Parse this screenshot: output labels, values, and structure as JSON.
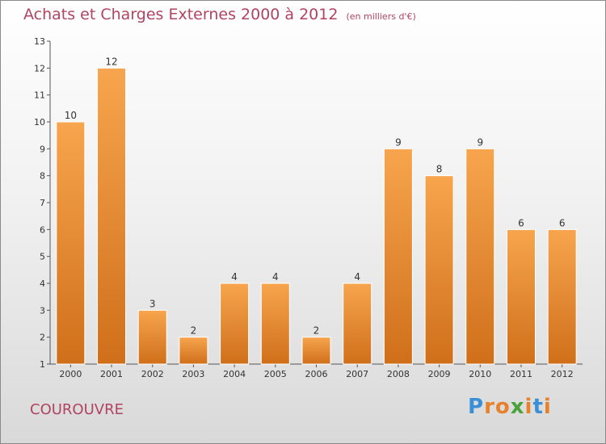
{
  "header": {
    "title": "Achats et Charges Externes 2000 à 2012",
    "unit": "(en milliers d'€)"
  },
  "commune": "COUROUVRE",
  "logo": {
    "text": "Proxiti",
    "letters": [
      {
        "ch": "P",
        "color": "#3a8fd6"
      },
      {
        "ch": "r",
        "color": "#e8812b"
      },
      {
        "ch": "o",
        "color": "#e8812b"
      },
      {
        "ch": "x",
        "color": "#4aa33a"
      },
      {
        "ch": "i",
        "color": "#e8812b"
      },
      {
        "ch": "t",
        "color": "#3a8fd6"
      },
      {
        "ch": "i",
        "color": "#e8812b"
      }
    ]
  },
  "chart_data": {
    "type": "bar",
    "title": "Achats et Charges Externes 2000 à 2012",
    "subtitle": "(en milliers d'€)",
    "categories": [
      "2000",
      "2001",
      "2002",
      "2003",
      "2004",
      "2005",
      "2006",
      "2007",
      "2008",
      "2009",
      "2010",
      "2011",
      "2012"
    ],
    "values": [
      10,
      12,
      3,
      2,
      4,
      4,
      2,
      4,
      9,
      8,
      9,
      6,
      6
    ],
    "ylim": [
      1,
      13
    ],
    "yticks": [
      1,
      2,
      3,
      4,
      5,
      6,
      7,
      8,
      9,
      10,
      11,
      12,
      13
    ],
    "grid": false,
    "legend": "none",
    "bar_color": "#f0963c",
    "bar_color_dark": "#d06f1a"
  }
}
